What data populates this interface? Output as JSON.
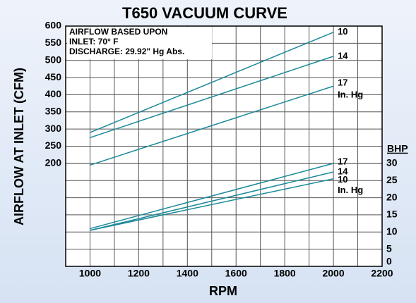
{
  "chart_data": {
    "type": "line",
    "title": "T650 VACUUM CURVE",
    "x_label": "RPM",
    "y_label": "AIRFLOW AT INLET (CFM)",
    "y2_label": "BHP",
    "notes": [
      "AIRFLOW BASED UPON",
      "INLET:  70° F",
      "DISCHARGE:  29.92\" Hg Abs."
    ],
    "unit_label": "In. Hg",
    "x": [
      1000,
      2000
    ],
    "series": [
      {
        "name": "10",
        "color": "#1a8a9a",
        "values": [
          290,
          582
        ]
      },
      {
        "name": "14",
        "color": "#1a8a9a",
        "values": [
          275,
          512
        ]
      },
      {
        "name": "17",
        "color": "#1a8a9a",
        "values": [
          195,
          425
        ]
      },
      {
        "name": "17",
        "color": "#1a8a9a",
        "values": [
          11,
          30
        ],
        "axis": "y2"
      },
      {
        "name": "14",
        "color": "#1a8a9a",
        "values": [
          10.5,
          27.5
        ],
        "axis": "y2"
      },
      {
        "name": "10",
        "color": "#1a8a9a",
        "values": [
          10.5,
          25.5
        ],
        "axis": "y2"
      }
    ],
    "xlim": [
      900,
      2200
    ],
    "xticks": [
      1000,
      1200,
      1400,
      1600,
      1800,
      2000,
      2200
    ],
    "x_minor_ticks": [
      1100,
      1300,
      1500,
      1700,
      1900,
      2100
    ],
    "ylim": [
      -100,
      600
    ],
    "yticks": [
      200,
      250,
      300,
      350,
      400,
      450,
      500,
      550,
      600
    ],
    "y2lim": [
      0,
      70
    ],
    "y2ticks": [
      0,
      5,
      10,
      15,
      20,
      25,
      30
    ],
    "grid": true
  }
}
